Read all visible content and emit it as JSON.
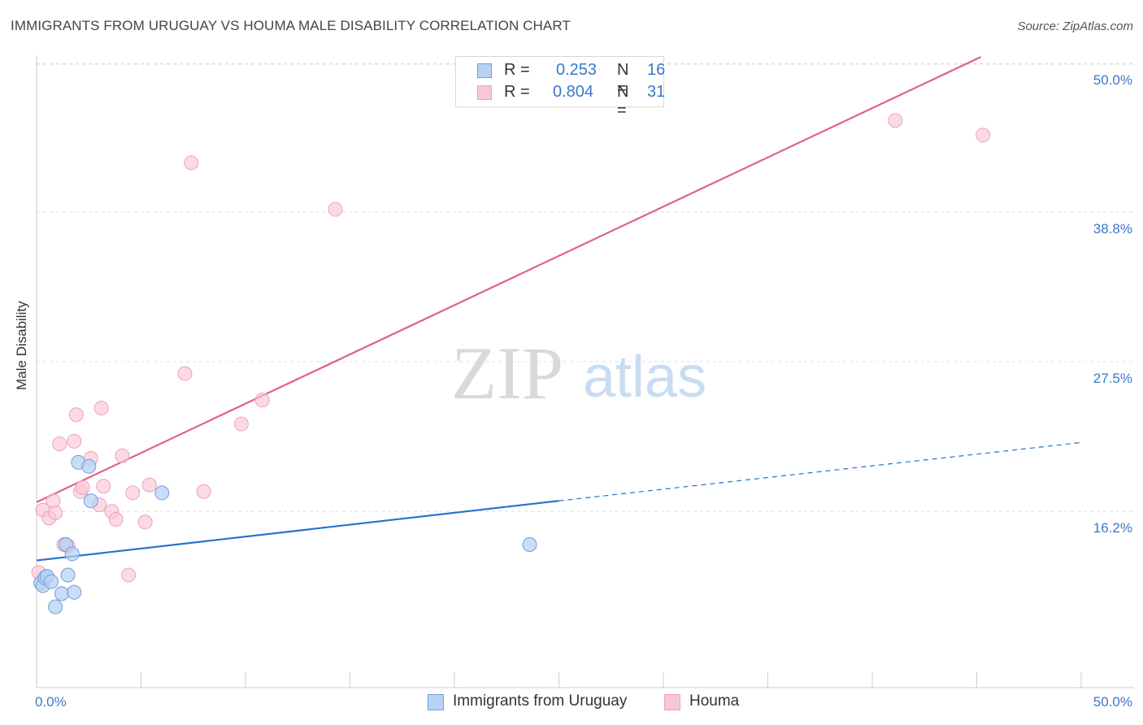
{
  "title": "IMMIGRANTS FROM URUGUAY VS HOUMA MALE DISABILITY CORRELATION CHART",
  "source": "Source: ZipAtlas.com",
  "watermark": {
    "zip": "ZIP",
    "atlas": "atlas"
  },
  "legend": {
    "rows": [
      {
        "r_label": "R =",
        "r_value": "0.253",
        "n_label": "N =",
        "n_value": "16"
      },
      {
        "r_label": "R =",
        "r_value": "0.804",
        "n_label": "N =",
        "n_value": "31"
      }
    ]
  },
  "bottom_legend": {
    "series1": "Immigrants from Uruguay",
    "series2": "Houma"
  },
  "chart_data": {
    "type": "scatter",
    "title": "IMMIGRANTS FROM URUGUAY VS HOUMA MALE DISABILITY CORRELATION CHART",
    "xlabel": "",
    "ylabel": "Male Disability",
    "xlim": [
      0,
      50
    ],
    "ylim": [
      4.5,
      50.5
    ],
    "x_tick_labels": [
      "0.0%",
      "50.0%"
    ],
    "y_ticks": [
      16.2,
      27.5,
      38.8,
      50.0
    ],
    "y_tick_labels": [
      "16.2%",
      "27.5%",
      "38.8%",
      "50.0%"
    ],
    "grid": true,
    "colors": {
      "uruguay_fill": "#b8d2f3",
      "uruguay_stroke": "#6b9edb",
      "uruguay_line": "#2870cf",
      "houma_fill": "#f9c6d6",
      "houma_stroke": "#eea3bb",
      "houma_line": "#e0608a",
      "tick_label": "#3a78c9",
      "grid": "#dddddd",
      "axis": "#cccccc"
    },
    "series": [
      {
        "name": "Immigrants from Uruguay",
        "points": [
          [
            0.2,
            10.8
          ],
          [
            0.3,
            10.6
          ],
          [
            0.4,
            11.2
          ],
          [
            0.5,
            11.3
          ],
          [
            0.7,
            10.9
          ],
          [
            0.9,
            9.0
          ],
          [
            1.2,
            10.0
          ],
          [
            1.4,
            13.7
          ],
          [
            1.5,
            11.4
          ],
          [
            1.7,
            13.0
          ],
          [
            1.8,
            10.1
          ],
          [
            2.0,
            19.9
          ],
          [
            2.5,
            19.6
          ],
          [
            2.6,
            17.0
          ],
          [
            6.0,
            17.6
          ],
          [
            23.6,
            13.7
          ]
        ],
        "trend": {
          "x": [
            0,
            25
          ],
          "y": [
            12.5,
            17.0
          ]
        },
        "trend_dashed": {
          "x": [
            25,
            50
          ],
          "y": [
            17.0,
            21.4
          ]
        }
      },
      {
        "name": "Houma",
        "points": [
          [
            0.1,
            11.6
          ],
          [
            0.3,
            16.3
          ],
          [
            0.6,
            15.7
          ],
          [
            0.8,
            17.0
          ],
          [
            0.9,
            16.1
          ],
          [
            1.1,
            21.3
          ],
          [
            1.3,
            13.7
          ],
          [
            1.5,
            13.6
          ],
          [
            1.8,
            21.5
          ],
          [
            1.9,
            23.5
          ],
          [
            2.1,
            17.7
          ],
          [
            2.2,
            18.0
          ],
          [
            2.6,
            20.2
          ],
          [
            3.0,
            16.7
          ],
          [
            3.1,
            24.0
          ],
          [
            3.2,
            18.1
          ],
          [
            3.6,
            16.2
          ],
          [
            3.8,
            15.6
          ],
          [
            4.1,
            20.4
          ],
          [
            4.4,
            11.4
          ],
          [
            4.6,
            17.6
          ],
          [
            5.2,
            15.4
          ],
          [
            5.4,
            18.2
          ],
          [
            7.1,
            26.6
          ],
          [
            7.4,
            42.5
          ],
          [
            8.0,
            17.7
          ],
          [
            9.8,
            22.8
          ],
          [
            10.8,
            24.6
          ],
          [
            14.3,
            39.0
          ],
          [
            41.1,
            45.7
          ],
          [
            45.3,
            44.6
          ]
        ],
        "trend": {
          "x": [
            0,
            45.2
          ],
          "y": [
            16.9,
            50.5
          ]
        }
      }
    ]
  }
}
